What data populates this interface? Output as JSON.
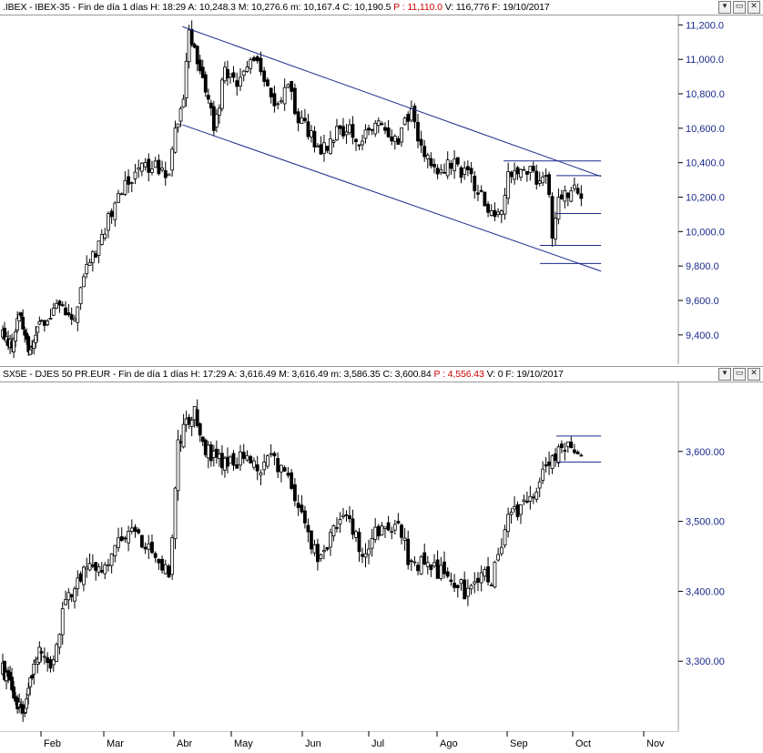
{
  "panes": [
    {
      "header": {
        "symbol": ".IBEX - IBEX-35 - Fin de día 1 días",
        "h": "H: 18:29",
        "a": "A: 10,248.3",
        "m": "M: 10,276.6",
        "mm": "m: 10,167.4",
        "c": "C: 10,190.5",
        "p": "P : 11,110.0",
        "v": "V: 116,776",
        "f": "F: 19/10/2017"
      },
      "buttons": [
        "▾",
        "▭",
        "✕"
      ]
    },
    {
      "header": {
        "symbol": "SX5E - DJES 50 PR.EUR - Fin de día 1 días",
        "h": "H: 17:29",
        "a": "A: 3,616.49",
        "m": "M: 3,616.49",
        "mm": "m: 3,586.35",
        "c": "C: 3,600.84",
        "p": "P : 4,556.43",
        "v": "V: 0",
        "f": "F: 19/10/2017"
      },
      "buttons": [
        "▾",
        "▭",
        "✕"
      ]
    }
  ],
  "x_axis": {
    "months": [
      "Feb",
      "Mar",
      "Abr",
      "May",
      "Jun",
      "Jul",
      "Ago",
      "Sep",
      "Oct",
      "Nov"
    ]
  },
  "colors": {
    "price": "#000000",
    "lines": "#1a2a8c",
    "grid": "#c0c0c0",
    "axis_text": "#1a2a8c"
  },
  "chart_data": [
    {
      "type": "candlestick",
      "title": ".IBEX - IBEX-35",
      "y_ticks": [
        "9,400.0",
        "9,600.0",
        "9,800.0",
        "10,000.0",
        "10,200.0",
        "10,400.0",
        "10,600.0",
        "10,800.0",
        "11,000.0",
        "11,200.0"
      ],
      "y_tick_values": [
        9400,
        9600,
        9800,
        10000,
        10200,
        10400,
        10600,
        10800,
        11000,
        11200
      ],
      "ylim": [
        9230,
        11260
      ],
      "grid": false,
      "trend_channel": {
        "upper": [
          {
            "x": 3.15,
            "y": 11190
          },
          {
            "x": 9.4,
            "y": 10320
          }
        ],
        "lower": [
          {
            "x": 3.15,
            "y": 10620
          },
          {
            "x": 9.4,
            "y": 9770
          }
        ]
      },
      "horizontal_levels": [
        {
          "y": 10410,
          "x_from": 7.95,
          "x_to": 9.4
        },
        {
          "y": 10325,
          "x_from": 8.75,
          "x_to": 9.4
        },
        {
          "y": 10105,
          "x_from": 8.75,
          "x_to": 9.4
        },
        {
          "y": 9920,
          "x_from": 8.5,
          "x_to": 9.4
        },
        {
          "y": 9815,
          "x_from": 8.5,
          "x_to": 9.4
        }
      ],
      "anchors": [
        [
          0.0,
          9400
        ],
        [
          0.3,
          9350
        ],
        [
          0.45,
          9580
        ],
        [
          0.6,
          9360
        ],
        [
          0.75,
          9320
        ],
        [
          1.0,
          9470
        ],
        [
          1.2,
          9550
        ],
        [
          1.4,
          9520
        ],
        [
          1.5,
          9460
        ],
        [
          1.65,
          9720
        ],
        [
          1.8,
          9820
        ],
        [
          2.0,
          10010
        ],
        [
          2.2,
          10200
        ],
        [
          2.45,
          10330
        ],
        [
          2.7,
          10390
        ],
        [
          2.95,
          10300
        ],
        [
          3.0,
          10620
        ],
        [
          3.15,
          10720
        ],
        [
          3.25,
          11150
        ],
        [
          3.5,
          10900
        ],
        [
          3.7,
          10600
        ],
        [
          3.9,
          10950
        ],
        [
          4.1,
          10850
        ],
        [
          4.3,
          11000
        ],
        [
          4.45,
          10900
        ],
        [
          4.6,
          10750
        ],
        [
          4.8,
          10820
        ],
        [
          5.0,
          10620
        ],
        [
          5.3,
          10460
        ],
        [
          5.5,
          10580
        ],
        [
          5.7,
          10600
        ],
        [
          5.9,
          10520
        ],
        [
          6.1,
          10640
        ],
        [
          6.3,
          10560
        ],
        [
          6.45,
          10520
        ],
        [
          6.6,
          10710
        ],
        [
          6.8,
          10440
        ],
        [
          7.0,
          10330
        ],
        [
          7.2,
          10400
        ],
        [
          7.5,
          10300
        ],
        [
          7.7,
          10150
        ],
        [
          7.9,
          10120
        ],
        [
          8.0,
          10300
        ],
        [
          8.2,
          10360
        ],
        [
          8.4,
          10330
        ],
        [
          8.5,
          10300
        ],
        [
          8.6,
          10350
        ],
        [
          8.7,
          9950
        ],
        [
          8.8,
          10200
        ],
        [
          9.0,
          10260
        ],
        [
          9.1,
          10230
        ],
        [
          9.15,
          10190
        ]
      ]
    },
    {
      "type": "candlestick",
      "title": "SX5E - DJES 50 PR.EUR",
      "y_ticks": [
        "3,300.00",
        "3,400.00",
        "3,500.00",
        "3,600.00"
      ],
      "y_tick_values": [
        3300,
        3400,
        3500,
        3600
      ],
      "ylim": [
        3200,
        3700
      ],
      "grid": false,
      "horizontal_levels": [
        {
          "y": 3622,
          "x_from": 8.75,
          "x_to": 9.4
        },
        {
          "y": 3585,
          "x_from": 8.75,
          "x_to": 9.4
        }
      ],
      "anchors": [
        [
          0.0,
          3285
        ],
        [
          0.25,
          3255
        ],
        [
          0.45,
          3230
        ],
        [
          0.6,
          3240
        ],
        [
          0.8,
          3290
        ],
        [
          1.0,
          3320
        ],
        [
          1.2,
          3290
        ],
        [
          1.35,
          3380
        ],
        [
          1.6,
          3420
        ],
        [
          1.8,
          3440
        ],
        [
          2.0,
          3430
        ],
        [
          2.2,
          3470
        ],
        [
          2.4,
          3490
        ],
        [
          2.6,
          3460
        ],
        [
          2.8,
          3440
        ],
        [
          2.95,
          3420
        ],
        [
          3.05,
          3600
        ],
        [
          3.2,
          3640
        ],
        [
          3.35,
          3660
        ],
        [
          3.55,
          3600
        ],
        [
          3.8,
          3590
        ],
        [
          4.0,
          3580
        ],
        [
          4.2,
          3600
        ],
        [
          4.4,
          3570
        ],
        [
          4.6,
          3590
        ],
        [
          4.8,
          3560
        ],
        [
          5.0,
          3520
        ],
        [
          5.2,
          3450
        ],
        [
          5.4,
          3470
        ],
        [
          5.55,
          3500
        ],
        [
          5.7,
          3510
        ],
        [
          5.9,
          3450
        ],
        [
          6.1,
          3490
        ],
        [
          6.3,
          3480
        ],
        [
          6.45,
          3500
        ],
        [
          6.6,
          3440
        ],
        [
          6.8,
          3440
        ],
        [
          7.0,
          3430
        ],
        [
          7.2,
          3420
        ],
        [
          7.4,
          3400
        ],
        [
          7.6,
          3420
        ],
        [
          7.8,
          3420
        ],
        [
          8.0,
          3500
        ],
        [
          8.2,
          3520
        ],
        [
          8.4,
          3540
        ],
        [
          8.6,
          3580
        ],
        [
          8.8,
          3600
        ],
        [
          9.0,
          3605
        ],
        [
          9.15,
          3600
        ]
      ]
    }
  ]
}
